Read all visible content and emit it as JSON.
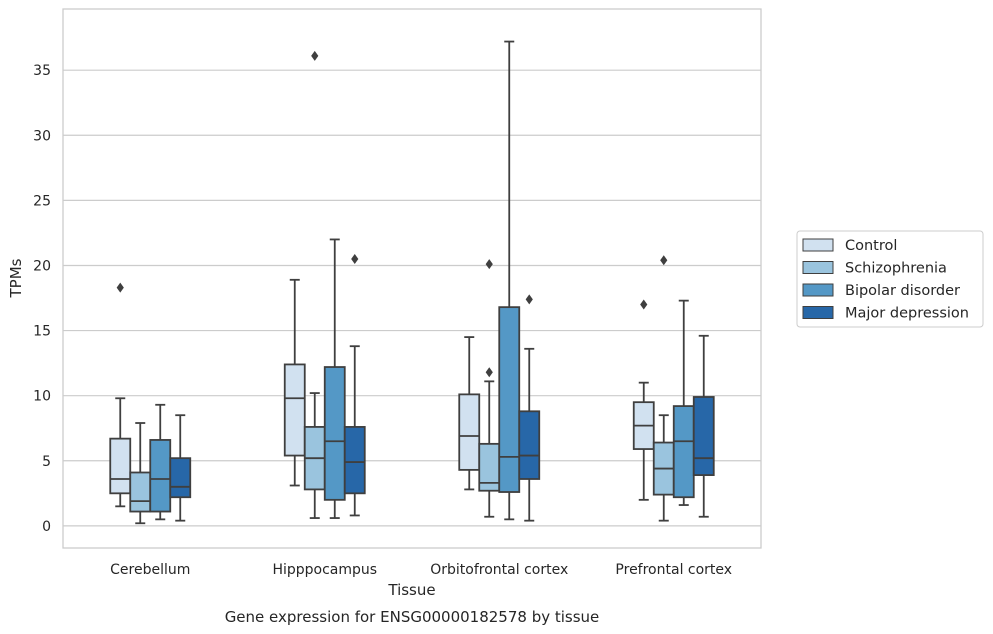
{
  "caption": "Gene expression for ENSG00000182578 by tissue",
  "chart_data": {
    "type": "box",
    "xlabel": "Tissue",
    "ylabel": "TPMs",
    "ylim": [
      -1.7,
      39.7
    ],
    "yticks": [
      0,
      5,
      10,
      15,
      20,
      25,
      30,
      35
    ],
    "grid": true,
    "legend_position": "right",
    "categories": [
      "Cerebellum",
      "Hipppocampus",
      "Orbitofrontal cortex",
      "Prefrontal cortex"
    ],
    "series": [
      {
        "name": "Control",
        "color": "#d1e1f0",
        "boxes": [
          {
            "whisker_low": 1.5,
            "q1": 2.5,
            "median": 3.6,
            "q3": 6.7,
            "whisker_high": 9.8,
            "outliers": [
              18.3
            ]
          },
          {
            "whisker_low": 3.1,
            "q1": 5.4,
            "median": 9.8,
            "q3": 12.4,
            "whisker_high": 18.9,
            "outliers": []
          },
          {
            "whisker_low": 2.8,
            "q1": 4.3,
            "median": 6.9,
            "q3": 10.1,
            "whisker_high": 14.5,
            "outliers": []
          },
          {
            "whisker_low": 2.0,
            "q1": 5.9,
            "median": 7.7,
            "q3": 9.5,
            "whisker_high": 11.0,
            "outliers": [
              17.0
            ]
          }
        ]
      },
      {
        "name": "Schizophrenia",
        "color": "#9ac4de",
        "boxes": [
          {
            "whisker_low": 0.2,
            "q1": 1.1,
            "median": 1.9,
            "q3": 4.1,
            "whisker_high": 7.9,
            "outliers": []
          },
          {
            "whisker_low": 0.6,
            "q1": 2.8,
            "median": 5.2,
            "q3": 7.6,
            "whisker_high": 10.2,
            "outliers": [
              36.1
            ]
          },
          {
            "whisker_low": 0.7,
            "q1": 2.7,
            "median": 3.3,
            "q3": 6.3,
            "whisker_high": 11.1,
            "outliers": [
              11.8,
              20.1
            ]
          },
          {
            "whisker_low": 0.4,
            "q1": 2.4,
            "median": 4.4,
            "q3": 6.4,
            "whisker_high": 8.5,
            "outliers": [
              20.4
            ]
          }
        ]
      },
      {
        "name": "Bipolar disorder",
        "color": "#5498c6",
        "boxes": [
          {
            "whisker_low": 0.5,
            "q1": 1.1,
            "median": 3.6,
            "q3": 6.6,
            "whisker_high": 9.3,
            "outliers": []
          },
          {
            "whisker_low": 0.6,
            "q1": 2.0,
            "median": 6.5,
            "q3": 12.2,
            "whisker_high": 22.0,
            "outliers": []
          },
          {
            "whisker_low": 0.5,
            "q1": 2.6,
            "median": 5.3,
            "q3": 16.8,
            "whisker_high": 37.2,
            "outliers": []
          },
          {
            "whisker_low": 1.6,
            "q1": 2.2,
            "median": 6.5,
            "q3": 9.2,
            "whisker_high": 17.3,
            "outliers": []
          }
        ]
      },
      {
        "name": "Major depression",
        "color": "#2767a8",
        "boxes": [
          {
            "whisker_low": 0.4,
            "q1": 2.2,
            "median": 3.0,
            "q3": 5.2,
            "whisker_high": 8.5,
            "outliers": []
          },
          {
            "whisker_low": 0.8,
            "q1": 2.5,
            "median": 4.9,
            "q3": 7.6,
            "whisker_high": 13.8,
            "outliers": [
              20.5
            ]
          },
          {
            "whisker_low": 0.4,
            "q1": 3.6,
            "median": 5.4,
            "q3": 8.8,
            "whisker_high": 13.6,
            "outliers": [
              17.4
            ]
          },
          {
            "whisker_low": 0.7,
            "q1": 3.9,
            "median": 5.2,
            "q3": 9.9,
            "whisker_high": 14.6,
            "outliers": []
          }
        ]
      }
    ]
  }
}
